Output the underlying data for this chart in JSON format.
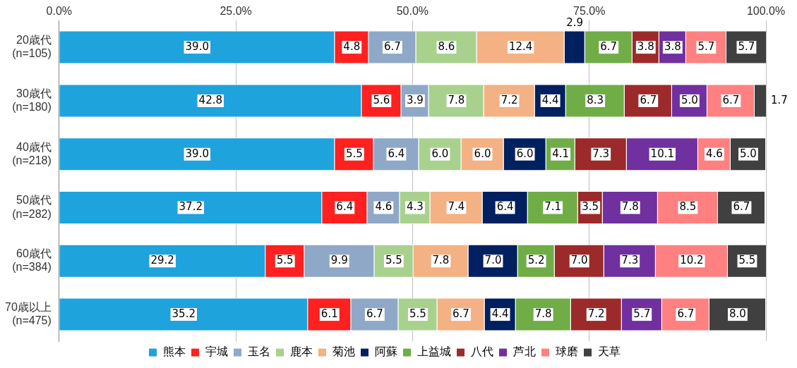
{
  "chart_data": {
    "type": "bar",
    "orientation": "horizontal",
    "stacked": true,
    "grid": "x",
    "legend": "bottom",
    "categories": [
      "20歳代\n(n=105)",
      "30歳代\n(n=180)",
      "40歳代\n(n=218)",
      "50歳代\n(n=282)",
      "60歳代\n(n=384)",
      "70歳以上\n(n=475)"
    ],
    "xlim": [
      0,
      100
    ],
    "xticks": [
      {
        "value": 0,
        "label": "0.0%"
      },
      {
        "value": 25,
        "label": "25.0%"
      },
      {
        "value": 50,
        "label": "50.0%"
      },
      {
        "value": 75,
        "label": "75.0%"
      },
      {
        "value": 100,
        "label": "100.0%"
      }
    ],
    "series": [
      {
        "name": "熊本",
        "color": "#1fa3dc",
        "values": [
          39.0,
          42.8,
          39.0,
          37.2,
          29.2,
          35.2
        ],
        "value_labels": [
          "39.0",
          "42.8",
          "39.0",
          "37.2",
          "29.2",
          "35.2"
        ]
      },
      {
        "name": "宇城",
        "color": "#ff2020",
        "values": [
          4.8,
          5.6,
          5.5,
          6.4,
          5.5,
          6.1
        ],
        "value_labels": [
          "4.8",
          "5.6",
          "5.5",
          "6.4",
          "5.5",
          "6.1"
        ]
      },
      {
        "name": "玉名",
        "color": "#8fa8c8",
        "values": [
          6.7,
          3.9,
          6.4,
          4.6,
          9.9,
          6.7
        ],
        "value_labels": [
          "6.7",
          "3.9",
          "6.4",
          "4.6",
          "9.9",
          "6.7"
        ]
      },
      {
        "name": "鹿本",
        "color": "#a9d18e",
        "values": [
          8.6,
          7.8,
          6.0,
          4.3,
          5.5,
          5.5
        ],
        "value_labels": [
          "8.6",
          "7.8",
          "6.0",
          "4.3",
          "5.5",
          "5.5"
        ]
      },
      {
        "name": "菊池",
        "color": "#f4b183",
        "values": [
          12.4,
          7.2,
          6.0,
          7.4,
          7.8,
          6.7
        ],
        "value_labels": [
          "12.4",
          "7.2",
          "6.0",
          "7.4",
          "7.8",
          "6.7"
        ]
      },
      {
        "name": "阿蘇",
        "color": "#002060",
        "values": [
          2.9,
          4.4,
          6.0,
          6.4,
          7.0,
          4.4
        ],
        "value_labels": [
          "2.9",
          "4.4",
          "6.0",
          "6.4",
          "7.0",
          "4.4"
        ]
      },
      {
        "name": "上益城",
        "color": "#70ad47",
        "values": [
          6.7,
          8.3,
          4.1,
          7.1,
          5.2,
          7.8
        ],
        "value_labels": [
          "6.7",
          "8.3",
          "4.1",
          "7.1",
          "5.2",
          "7.8"
        ]
      },
      {
        "name": "八代",
        "color": "#9c2a2a",
        "values": [
          3.8,
          6.7,
          7.3,
          3.5,
          7.0,
          7.2
        ],
        "value_labels": [
          "3.8",
          "6.7",
          "7.3",
          "3.5",
          "7.0",
          "7.2"
        ]
      },
      {
        "name": "芦北",
        "color": "#7030a0",
        "values": [
          3.8,
          5.0,
          10.1,
          7.8,
          7.3,
          5.7
        ],
        "value_labels": [
          "3.8",
          "5.0",
          "10.1",
          "7.8",
          "7.3",
          "5.7"
        ]
      },
      {
        "name": "球磨",
        "color": "#ff8080",
        "values": [
          5.7,
          6.7,
          4.6,
          8.5,
          10.2,
          6.7
        ],
        "value_labels": [
          "5.7",
          "6.7",
          "4.6",
          "8.5",
          "10.2",
          "6.7"
        ]
      },
      {
        "name": "天草",
        "color": "#404040",
        "values": [
          5.7,
          1.7,
          5.0,
          6.7,
          5.5,
          8.0
        ],
        "value_labels": [
          "5.7",
          "1.7",
          "5.0",
          "6.7",
          "5.5",
          "8.0"
        ]
      }
    ]
  }
}
